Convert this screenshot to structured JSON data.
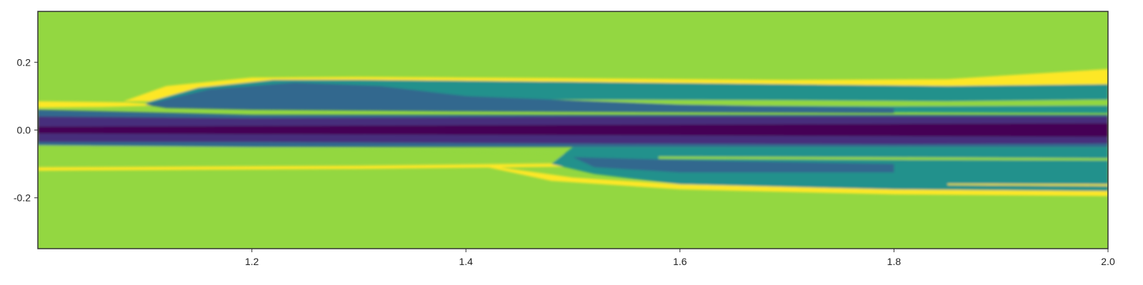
{
  "chart_data": {
    "type": "heatmap",
    "title": "",
    "xlabel": "",
    "ylabel": "",
    "xlim": [
      1.0,
      2.0
    ],
    "ylim": [
      -0.35,
      0.35
    ],
    "x_ticks": [
      1.2,
      1.4,
      1.6,
      1.8,
      2.0
    ],
    "x_tick_labels": [
      "1.2",
      "1.4",
      "1.6",
      "1.8",
      "2.0"
    ],
    "y_ticks": [
      0.2,
      0.0,
      -0.2
    ],
    "y_tick_labels": [
      "0.2",
      "0.0",
      "-0.2"
    ],
    "grid": false,
    "colormap": "viridis",
    "background_color": "#93d741",
    "colors": {
      "yellow": "#fde725",
      "green": "#93d741",
      "teal": "#21918c",
      "blue": "#31688e",
      "purple": "#462f7c",
      "dark_purple": "#440154"
    },
    "regions": [
      {
        "name": "upper-thin-tail",
        "level": "yellow",
        "top": [
          [
            1.0,
            0.085
          ],
          [
            1.08,
            0.082
          ],
          [
            1.11,
            0.076
          ]
        ],
        "bottom": [
          [
            1.11,
            0.072
          ],
          [
            1.06,
            0.068
          ],
          [
            1.0,
            0.066
          ]
        ]
      },
      {
        "name": "upper-yellow-band",
        "level": "yellow",
        "top": [
          [
            1.08,
            0.085
          ],
          [
            1.12,
            0.13
          ],
          [
            1.2,
            0.155
          ],
          [
            1.3,
            0.157
          ],
          [
            1.5,
            0.153
          ],
          [
            1.7,
            0.148
          ],
          [
            1.85,
            0.15
          ],
          [
            1.95,
            0.17
          ],
          [
            2.0,
            0.18
          ]
        ],
        "bottom": [
          [
            2.0,
            0.105
          ],
          [
            1.8,
            0.11
          ],
          [
            1.6,
            0.12
          ],
          [
            1.4,
            0.128
          ],
          [
            1.2,
            0.13
          ],
          [
            1.12,
            0.085
          ]
        ]
      },
      {
        "name": "upper-teal-body",
        "level": "teal",
        "top": [
          [
            1.1,
            0.08
          ],
          [
            1.15,
            0.125
          ],
          [
            1.22,
            0.148
          ],
          [
            1.3,
            0.148
          ],
          [
            1.5,
            0.142
          ],
          [
            1.7,
            0.135
          ],
          [
            1.85,
            0.13
          ],
          [
            2.0,
            0.135
          ]
        ],
        "bottom": [
          [
            2.0,
            0.05
          ],
          [
            1.6,
            0.055
          ],
          [
            1.4,
            0.06
          ],
          [
            1.2,
            0.065
          ],
          [
            1.12,
            0.07
          ]
        ]
      },
      {
        "name": "upper-green-streak",
        "level": "green",
        "top": [
          [
            1.48,
            0.09
          ],
          [
            1.7,
            0.088
          ],
          [
            1.85,
            0.085
          ],
          [
            2.0,
            0.09
          ]
        ],
        "bottom": [
          [
            2.0,
            0.072
          ],
          [
            1.8,
            0.07
          ],
          [
            1.6,
            0.072
          ],
          [
            1.48,
            0.08
          ]
        ]
      },
      {
        "name": "upper-blue-body",
        "level": "blue",
        "top": [
          [
            1.1,
            0.075
          ],
          [
            1.16,
            0.12
          ],
          [
            1.24,
            0.14
          ],
          [
            1.32,
            0.13
          ],
          [
            1.4,
            0.1
          ],
          [
            1.6,
            0.075
          ],
          [
            1.8,
            0.065
          ]
        ],
        "bottom": [
          [
            1.8,
            0.05
          ],
          [
            1.4,
            0.055
          ],
          [
            1.2,
            0.06
          ],
          [
            1.12,
            0.065
          ]
        ]
      },
      {
        "name": "lower-green-wedge",
        "level": "green",
        "top": [
          [
            1.0,
            -0.045
          ],
          [
            1.3,
            -0.055
          ],
          [
            1.5,
            -0.07
          ],
          [
            1.62,
            -0.085
          ]
        ],
        "bottom": [
          [
            1.62,
            -0.092
          ],
          [
            1.4,
            -0.095
          ],
          [
            1.2,
            -0.1
          ],
          [
            1.0,
            -0.102
          ]
        ]
      },
      {
        "name": "lower-yellow-line",
        "level": "yellow",
        "top": [
          [
            1.0,
            -0.11
          ],
          [
            1.3,
            -0.105
          ],
          [
            1.5,
            -0.098
          ],
          [
            1.62,
            -0.088
          ]
        ],
        "bottom": [
          [
            1.62,
            -0.096
          ],
          [
            1.5,
            -0.108
          ],
          [
            1.3,
            -0.115
          ],
          [
            1.0,
            -0.12
          ]
        ]
      },
      {
        "name": "lower-yellow-sweep",
        "level": "yellow",
        "top": [
          [
            1.42,
            -0.105
          ],
          [
            1.5,
            -0.14
          ],
          [
            1.6,
            -0.16
          ],
          [
            1.8,
            -0.172
          ],
          [
            2.0,
            -0.17
          ]
        ],
        "bottom": [
          [
            2.0,
            -0.195
          ],
          [
            1.8,
            -0.19
          ],
          [
            1.6,
            -0.175
          ],
          [
            1.48,
            -0.15
          ],
          [
            1.42,
            -0.11
          ]
        ]
      },
      {
        "name": "lower-teal-body",
        "level": "teal",
        "top": [
          [
            1.5,
            -0.05
          ],
          [
            1.8,
            -0.05
          ],
          [
            2.0,
            -0.05
          ]
        ],
        "bottom": [
          [
            2.0,
            -0.18
          ],
          [
            1.8,
            -0.175
          ],
          [
            1.6,
            -0.16
          ],
          [
            1.52,
            -0.13
          ],
          [
            1.48,
            -0.1
          ]
        ]
      },
      {
        "name": "lower-blue-patch",
        "level": "blue",
        "top": [
          [
            1.5,
            -0.08
          ],
          [
            1.62,
            -0.09
          ],
          [
            1.8,
            -0.1
          ]
        ],
        "bottom": [
          [
            1.8,
            -0.125
          ],
          [
            1.6,
            -0.125
          ],
          [
            1.52,
            -0.11
          ]
        ]
      },
      {
        "name": "lower-green-streak",
        "level": "green",
        "top": [
          [
            1.58,
            -0.078
          ],
          [
            1.8,
            -0.08
          ],
          [
            2.0,
            -0.083
          ]
        ],
        "bottom": [
          [
            2.0,
            -0.09
          ],
          [
            1.8,
            -0.088
          ],
          [
            1.58,
            -0.085
          ]
        ]
      },
      {
        "name": "lower-yellow-fringe",
        "level": "yellow",
        "top": [
          [
            1.85,
            -0.158
          ],
          [
            2.0,
            -0.16
          ]
        ],
        "bottom": [
          [
            2.0,
            -0.165
          ],
          [
            1.85,
            -0.162
          ]
        ]
      },
      {
        "name": "central-core-outer",
        "level": "blue",
        "top": [
          [
            1.0,
            0.06
          ],
          [
            1.2,
            0.045
          ],
          [
            1.5,
            0.045
          ],
          [
            1.8,
            0.045
          ],
          [
            2.0,
            0.045
          ]
        ],
        "bottom": [
          [
            2.0,
            -0.05
          ],
          [
            1.8,
            -0.05
          ],
          [
            1.5,
            -0.05
          ],
          [
            1.2,
            -0.05
          ],
          [
            1.0,
            -0.045
          ]
        ]
      },
      {
        "name": "central-core-inner",
        "level": "purple",
        "top": [
          [
            1.0,
            0.04
          ],
          [
            1.2,
            0.035
          ],
          [
            1.5,
            0.04
          ],
          [
            1.8,
            0.04
          ],
          [
            2.0,
            0.04
          ]
        ],
        "bottom": [
          [
            2.0,
            -0.04
          ],
          [
            1.8,
            -0.042
          ],
          [
            1.5,
            -0.04
          ],
          [
            1.2,
            -0.035
          ],
          [
            1.0,
            -0.035
          ]
        ]
      },
      {
        "name": "central-core-dark",
        "level": "dark_purple",
        "top": [
          [
            1.0,
            0.01
          ],
          [
            1.5,
            0.015
          ],
          [
            2.0,
            0.02
          ]
        ],
        "bottom": [
          [
            2.0,
            -0.02
          ],
          [
            1.5,
            -0.015
          ],
          [
            1.0,
            -0.01
          ]
        ]
      }
    ]
  }
}
